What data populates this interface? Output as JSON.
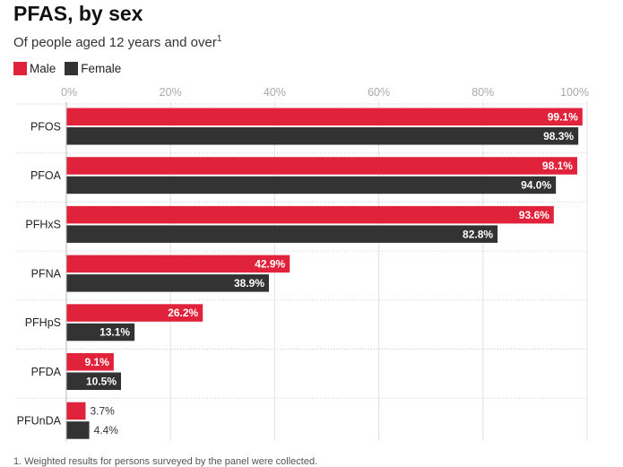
{
  "header": {
    "title": "PFAS, by sex",
    "subtitle": "Of people aged 12 years and over",
    "subtitle_footnote_ref": "1"
  },
  "legend": {
    "items": [
      {
        "label": "Male",
        "color": "#e0233a"
      },
      {
        "label": "Female",
        "color": "#333333"
      }
    ]
  },
  "footnote": "1. Weighted results for persons surveyed by the panel were collected.",
  "chart_data": {
    "type": "bar",
    "orientation": "horizontal",
    "title": "PFAS, by sex",
    "subtitle": "Of people aged 12 years and over",
    "categories": [
      "PFOS",
      "PFOA",
      "PFHxS",
      "PFNA",
      "PFHpS",
      "PFDA",
      "PFUnDA"
    ],
    "series": [
      {
        "name": "Male",
        "color": "#e0233a",
        "values": [
          99.1,
          98.1,
          93.6,
          42.9,
          26.2,
          9.1,
          3.7
        ]
      },
      {
        "name": "Female",
        "color": "#333333",
        "values": [
          98.3,
          94.0,
          82.8,
          38.9,
          13.1,
          10.5,
          4.4
        ]
      }
    ],
    "value_labels": [
      [
        "99.1%",
        "98.1%",
        "93.6%",
        "42.9%",
        "26.2%",
        "9.1%",
        "3.7%"
      ],
      [
        "98.3%",
        "94.0%",
        "82.8%",
        "38.9%",
        "13.1%",
        "10.5%",
        "4.4%"
      ]
    ],
    "x_ticks": [
      0,
      20,
      40,
      60,
      80,
      100
    ],
    "x_tick_labels": [
      "0%",
      "20%",
      "40%",
      "60%",
      "80%",
      "100%"
    ],
    "xlim": [
      0,
      100
    ],
    "grid": true,
    "axis_position": "top",
    "legend_position": "top-left"
  }
}
